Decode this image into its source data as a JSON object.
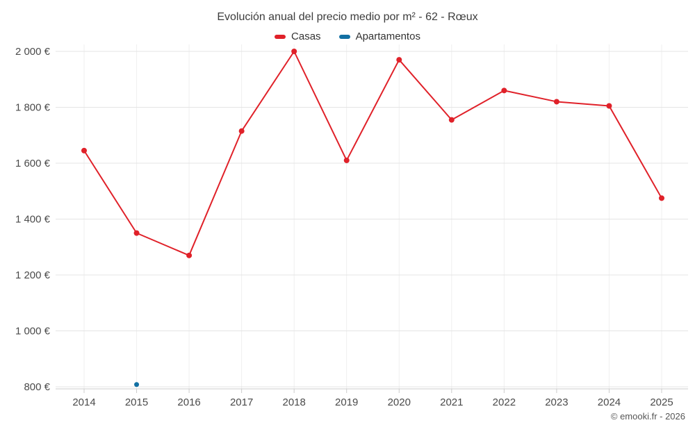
{
  "title": "Evolución anual del precio medio por m² - 62 - Rœux",
  "copyright": "© emooki.fr - 2026",
  "legend": [
    {
      "label": "Casas",
      "color": "#e02129"
    },
    {
      "label": "Apartamentos",
      "color": "#1270a3"
    }
  ],
  "chart_data": {
    "type": "line",
    "title": "Evolución anual del precio medio por m² - 62 - Rœux",
    "categories": [
      "2014",
      "2015",
      "2016",
      "2017",
      "2018",
      "2019",
      "2020",
      "2021",
      "2022",
      "2023",
      "2024",
      "2025"
    ],
    "series": [
      {
        "name": "Casas",
        "color": "#e02129",
        "values": [
          1645,
          1350,
          1270,
          1715,
          2000,
          1610,
          1970,
          1755,
          1860,
          1820,
          1805,
          1475
        ]
      },
      {
        "name": "Apartamentos",
        "color": "#1270a3",
        "values": [
          null,
          808,
          null,
          null,
          null,
          null,
          null,
          null,
          null,
          null,
          null,
          null
        ]
      }
    ],
    "ylim": [
      800,
      2000
    ],
    "yticks": [
      800,
      1000,
      1200,
      1400,
      1600,
      1800,
      2000
    ],
    "ytick_labels": [
      "800 €",
      "1 000 €",
      "1 200 €",
      "1 400 €",
      "1 600 €",
      "1 800 €",
      "2 000 €"
    ],
    "xlabel": "",
    "ylabel": "",
    "grid": true,
    "legend_position": "top"
  }
}
